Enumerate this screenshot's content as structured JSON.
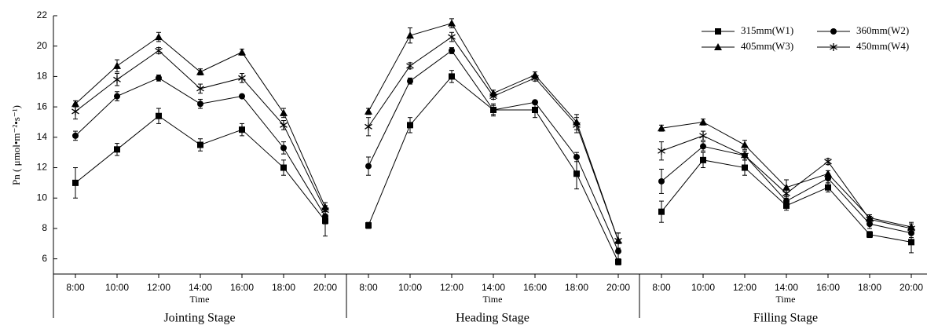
{
  "chart_data": [
    {
      "type": "line",
      "title": "Jointing Stage",
      "x_label": "Time",
      "y_label": "Pn ( μmol•m⁻²•s⁻¹)",
      "categories": [
        "8:00",
        "10:00",
        "12:00",
        "14:00",
        "16:00",
        "18:00",
        "20:00"
      ],
      "ylim": [
        5,
        22
      ],
      "yticks": [
        6,
        8,
        10,
        12,
        14,
        16,
        18,
        20,
        22
      ],
      "legend": "top-right",
      "series": [
        {
          "name": "315mm(W1)",
          "color": "#000000",
          "marker": "square",
          "values": [
            11.0,
            13.2,
            15.4,
            13.5,
            14.5,
            12.0,
            8.5
          ],
          "errors": [
            1.0,
            0.4,
            0.5,
            0.4,
            0.4,
            0.5,
            1.0
          ]
        },
        {
          "name": "360mm(W2)",
          "color": "#000000",
          "marker": "circle",
          "values": [
            14.1,
            16.7,
            17.9,
            16.2,
            16.7,
            13.3,
            8.8
          ],
          "errors": [
            0.3,
            0.3,
            0.2,
            0.3,
            0.1,
            0.4,
            0.5
          ]
        },
        {
          "name": "405mm(W3)",
          "color": "#000000",
          "marker": "triangle",
          "values": [
            16.2,
            18.7,
            20.6,
            18.3,
            19.6,
            15.6,
            9.4
          ],
          "errors": [
            0.2,
            0.4,
            0.3,
            0.2,
            0.2,
            0.3,
            0.3
          ]
        },
        {
          "name": "450mm(W4)",
          "color": "#000000",
          "marker": "star",
          "values": [
            15.7,
            17.8,
            19.7,
            17.2,
            17.9,
            14.8,
            9.2
          ],
          "errors": [
            0.5,
            0.4,
            0.2,
            0.3,
            0.3,
            0.3,
            0.3
          ]
        }
      ]
    },
    {
      "type": "line",
      "title": "Heading Stage",
      "x_label": "Time",
      "categories": [
        "8:00",
        "10:00",
        "12:00",
        "14:00",
        "16:00",
        "18:00",
        "20:00"
      ],
      "series": [
        {
          "color": "#000000",
          "marker": "square",
          "values": [
            8.2,
            14.8,
            18.0,
            15.8,
            15.8,
            11.6,
            5.8
          ],
          "errors": [
            0.2,
            0.5,
            0.4,
            0.4,
            0.5,
            1.0,
            0.2
          ]
        },
        {
          "color": "#000000",
          "marker": "circle",
          "values": [
            12.1,
            17.7,
            19.7,
            15.8,
            16.3,
            12.7,
            6.5
          ],
          "errors": [
            0.6,
            0.2,
            0.2,
            0.3,
            0.1,
            0.3,
            0.5
          ]
        },
        {
          "color": "#000000",
          "marker": "triangle",
          "values": [
            15.7,
            20.7,
            21.5,
            16.9,
            18.1,
            15.0,
            7.2
          ],
          "errors": [
            0.2,
            0.5,
            0.3,
            0.2,
            0.2,
            0.5,
            0.5
          ]
        },
        {
          "color": "#000000",
          "marker": "star",
          "values": [
            14.7,
            18.7,
            20.6,
            16.7,
            17.9,
            14.8,
            7.2
          ],
          "errors": [
            0.6,
            0.2,
            0.3,
            0.2,
            0.2,
            0.5,
            0.5
          ]
        }
      ]
    },
    {
      "type": "line",
      "title": "Filling Stage",
      "x_label": "Time",
      "categories": [
        "8:00",
        "10:00",
        "12:00",
        "14:00",
        "16:00",
        "18:00",
        "20:00"
      ],
      "series": [
        {
          "color": "#000000",
          "marker": "square",
          "values": [
            9.1,
            12.5,
            12.0,
            9.5,
            10.7,
            7.6,
            7.1
          ],
          "errors": [
            0.7,
            0.5,
            0.5,
            0.3,
            0.3,
            0.2,
            0.7
          ]
        },
        {
          "color": "#000000",
          "marker": "circle",
          "values": [
            11.1,
            13.4,
            12.8,
            9.8,
            11.3,
            8.3,
            7.7
          ],
          "errors": [
            0.8,
            0.3,
            0.3,
            0.3,
            0.3,
            0.3,
            0.3
          ]
        },
        {
          "color": "#000000",
          "marker": "triangle",
          "values": [
            14.6,
            15.0,
            13.5,
            10.7,
            11.6,
            8.7,
            8.1
          ],
          "errors": [
            0.2,
            0.2,
            0.3,
            0.5,
            0.2,
            0.2,
            0.3
          ]
        },
        {
          "color": "#000000",
          "marker": "star",
          "values": [
            13.1,
            14.1,
            12.8,
            10.3,
            12.4,
            8.6,
            8.0
          ],
          "errors": [
            0.6,
            0.3,
            0.3,
            0.3,
            0.2,
            0.2,
            0.3
          ]
        }
      ]
    }
  ]
}
